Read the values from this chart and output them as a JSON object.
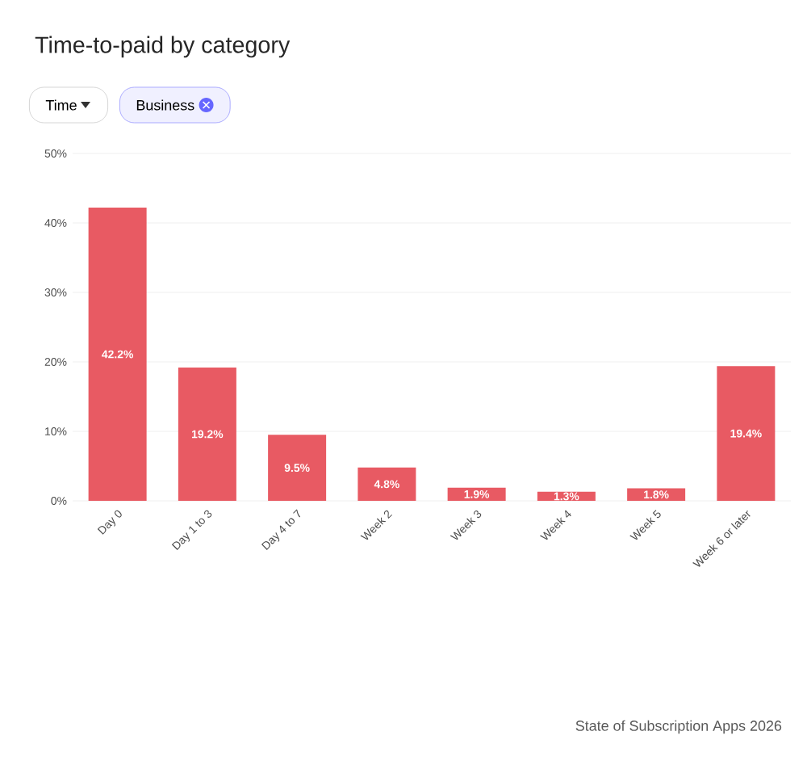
{
  "chart_data": {
    "type": "bar",
    "title": "Time-to-paid by category",
    "categories": [
      "Day 0",
      "Day 1 to 3",
      "Day 4 to 7",
      "Week 2",
      "Week 3",
      "Week 4",
      "Week 5",
      "Week 6 or later"
    ],
    "values": [
      42.2,
      19.2,
      9.5,
      4.8,
      1.9,
      1.3,
      1.8,
      19.4
    ],
    "value_labels": [
      "42.2%",
      "19.2%",
      "9.5%",
      "4.8%",
      "1.9%",
      "1.3%",
      "1.8%",
      "19.4%"
    ],
    "color": "#e85a63",
    "ylim": [
      0,
      50
    ],
    "yticks": [
      {
        "value": 0,
        "label": "0%"
      },
      {
        "value": 10,
        "label": "10%"
      },
      {
        "value": 20,
        "label": "20%"
      },
      {
        "value": 30,
        "label": "30%"
      },
      {
        "value": 40,
        "label": "40%"
      },
      {
        "value": 50,
        "label": "50%"
      }
    ],
    "grid": "y",
    "annotations": [
      "Time",
      "Business",
      "State of Subscription Apps 2026"
    ]
  }
}
